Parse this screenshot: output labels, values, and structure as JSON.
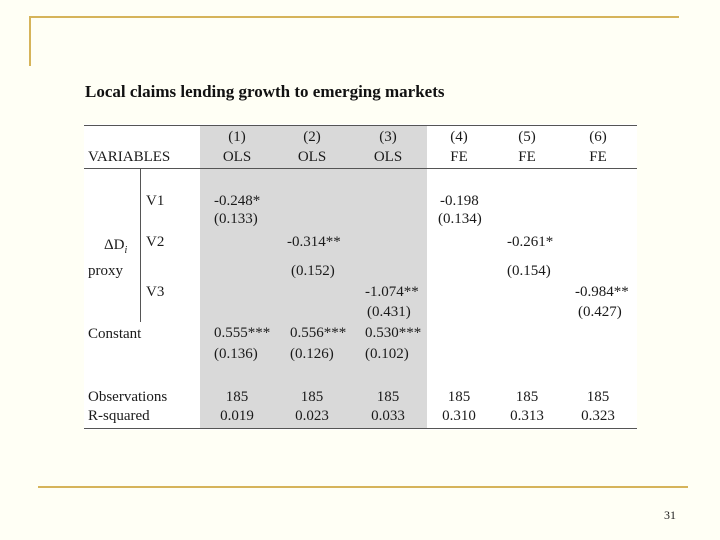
{
  "title": "Local claims lending growth to emerging markets",
  "page_number": "31",
  "table": {
    "variables_label": "VARIABLES",
    "columns": [
      {
        "num": "(1)",
        "method": "OLS"
      },
      {
        "num": "(2)",
        "method": "OLS"
      },
      {
        "num": "(3)",
        "method": "OLS"
      },
      {
        "num": "(4)",
        "method": "FE"
      },
      {
        "num": "(5)",
        "method": "FE"
      },
      {
        "num": "(6)",
        "method": "FE"
      }
    ],
    "group_label_symbol": "ΔD",
    "group_label_subscript": "i",
    "group_label_proxy": "proxy",
    "v1": {
      "label": "V1",
      "c1_coef": "-0.248*",
      "c1_se": "(0.133)",
      "c4_coef": "-0.198",
      "c4_se": "(0.134)"
    },
    "v2": {
      "label": "V2",
      "c2_coef": "-0.314**",
      "c2_se": "(0.152)",
      "c5_coef": "-0.261*",
      "c5_se": "(0.154)"
    },
    "v3": {
      "label": "V3",
      "c3_coef": "-1.074**",
      "c3_se": "(0.431)",
      "c6_coef": "-0.984**",
      "c6_se": "(0.427)"
    },
    "constant": {
      "label": "Constant",
      "coefs": [
        "0.555***",
        "0.556***",
        "0.530***"
      ],
      "ses": [
        "(0.136)",
        "(0.126)",
        "(0.102)"
      ]
    },
    "observations": {
      "label": "Observations",
      "values": [
        "185",
        "185",
        "185",
        "185",
        "185",
        "185"
      ]
    },
    "r_squared": {
      "label": "R-squared",
      "values": [
        "0.019",
        "0.023",
        "0.033",
        "0.310",
        "0.313",
        "0.323"
      ]
    }
  }
}
